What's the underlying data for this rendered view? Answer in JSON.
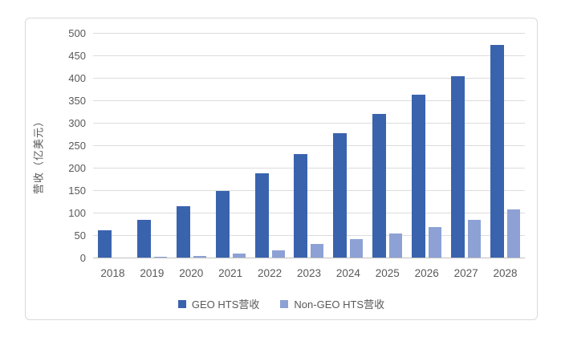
{
  "chart_data": {
    "type": "bar",
    "title": "",
    "xlabel": "",
    "ylabel": "营收（亿美元）",
    "categories": [
      "2018",
      "2019",
      "2020",
      "2021",
      "2022",
      "2023",
      "2024",
      "2025",
      "2026",
      "2027",
      "2028"
    ],
    "series": [
      {
        "name": "GEO HTS营收",
        "color": "#3a63ae",
        "values": [
          62,
          86,
          116,
          150,
          189,
          232,
          278,
          322,
          365,
          406,
          475
        ]
      },
      {
        "name": "Non-GEO HTS营收",
        "color": "#8da1d5",
        "values": [
          2,
          3,
          6,
          11,
          18,
          33,
          43,
          56,
          70,
          85,
          109
        ]
      }
    ],
    "ylim": [
      0,
      500
    ],
    "yticks": [
      0,
      50,
      100,
      150,
      200,
      250,
      300,
      350,
      400,
      450,
      500
    ],
    "grid": true,
    "legend_position": "bottom"
  },
  "colors": {
    "background": "#ffffff",
    "chart_border": "#d9d9d9",
    "gridline": "#dcdcdc",
    "axis_line": "#bfbfbf",
    "text": "#595959"
  }
}
